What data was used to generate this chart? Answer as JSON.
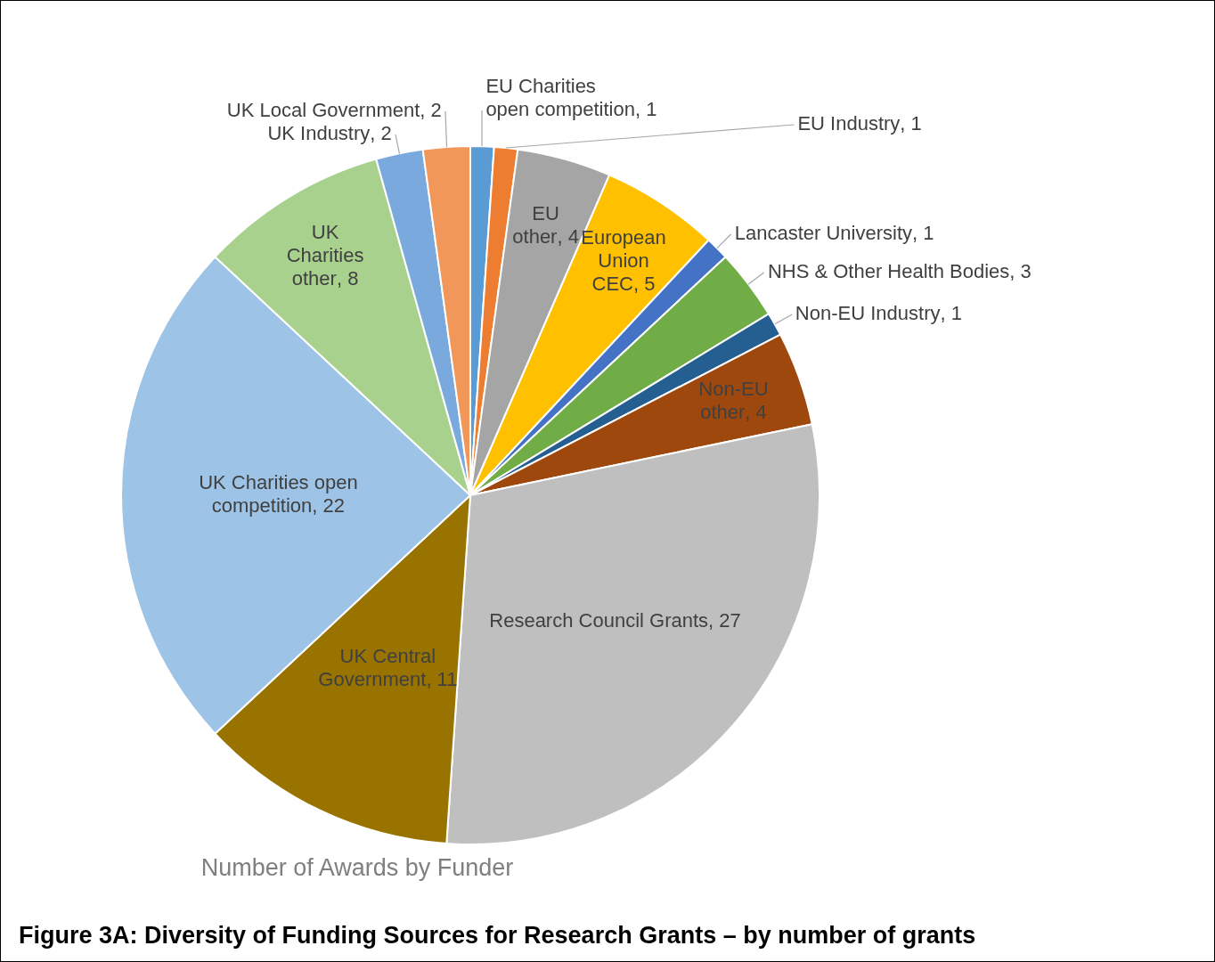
{
  "chart_data": {
    "type": "pie",
    "title": "Number of Awards by Funder",
    "categories": [
      "EU Charities open competition",
      "EU Industry",
      "EU other",
      "European Union CEC",
      "Lancaster University",
      "NHS & Other Health Bodies",
      "Non-EU Industry",
      "Non-EU other",
      "Research Council Grants",
      "UK Central Government",
      "UK Charities open competition",
      "UK Charities other",
      "UK Industry",
      "UK Local Government"
    ],
    "values": [
      1,
      1,
      4,
      5,
      1,
      3,
      1,
      4,
      27,
      11,
      22,
      8,
      2,
      2
    ],
    "value_labels": [
      ", 1",
      ", 1",
      ", 4",
      ", 5",
      ", 1",
      ", 3",
      ", 1",
      ", 4",
      ", 27",
      ", 11",
      ", 22",
      ", 8",
      ", 2",
      ", 2"
    ],
    "colors": [
      "#5b9bd5",
      "#ed7d31",
      "#a5a5a5",
      "#ffc000",
      "#4472c4",
      "#70ad47",
      "#255e91",
      "#9e480e",
      "#bfbfbf",
      "#997300",
      "#9dc3e6",
      "#a9d18e",
      "#7aaadd",
      "#f1975a"
    ],
    "annotations": [
      "Figure 3A: Diversity of Funding Sources for Research Grants – by number of grants"
    ]
  }
}
